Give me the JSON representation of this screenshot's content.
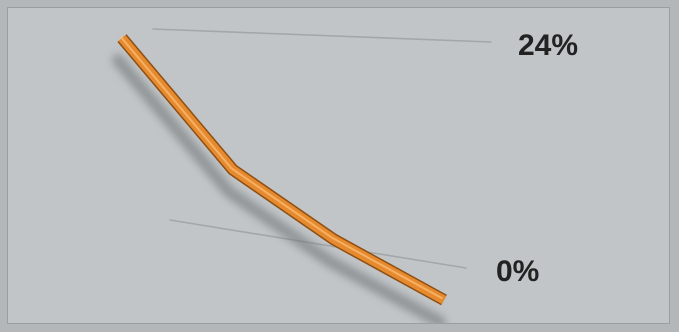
{
  "chart_data": {
    "type": "line",
    "title": "",
    "xlabel": "",
    "ylabel": "",
    "x": [
      1,
      2,
      3,
      4
    ],
    "series": [
      {
        "name": "",
        "values": [
          23.5,
          8.4,
          3.2,
          0.0
        ]
      }
    ],
    "reference_lines": [
      {
        "label": "24%",
        "value": 24
      },
      {
        "label": "0%",
        "value": 0
      }
    ],
    "ylim": [
      0,
      24
    ],
    "grid": false,
    "legend": "none",
    "colors": {
      "line": "#e58a2e",
      "line_edge": "#8f4f12",
      "line_highlight": "#ffc07a",
      "shadow": "#6b6f72",
      "reference_line": "#a3a7a9",
      "label": "#222222"
    }
  }
}
